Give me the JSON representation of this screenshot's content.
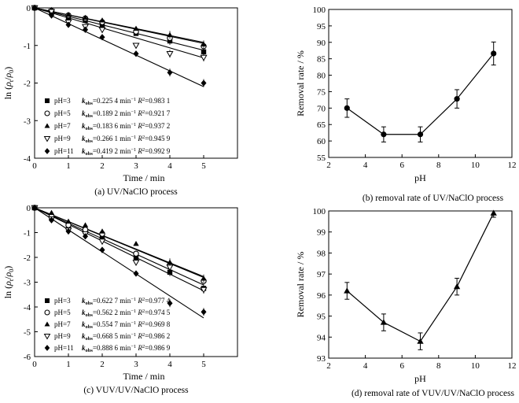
{
  "panels": {
    "a": {
      "caption": "(a) UV/NaClO process",
      "legend": [
        {
          "ph": "pH=3",
          "k": "=0.225 4 min",
          "r2": "=0.983 1"
        },
        {
          "ph": "pH=5",
          "k": "=0.189 2 min",
          "r2": "=0.921 7"
        },
        {
          "ph": "pH=7",
          "k": "=0.183 6 min",
          "r2": "=0.937 2"
        },
        {
          "ph": "pH=9",
          "k": "=0.266 1 min",
          "r2": "=0.945 9"
        },
        {
          "ph": "pH=11",
          "k": "=0.419 2 min",
          "r2": "=0.992 9"
        }
      ]
    },
    "b": {
      "caption": "(b) removal rate of UV/NaClO process"
    },
    "c": {
      "caption": "(c) VUV/UV/NaClO process",
      "legend": [
        {
          "ph": "pH=3",
          "k": "=0.622 7 min",
          "r2": "=0.977 4"
        },
        {
          "ph": "pH=5",
          "k": "=0.562 2 min",
          "r2": "=0.974 5"
        },
        {
          "ph": "pH=7",
          "k": "=0.554 7 min",
          "r2": "=0.969 8"
        },
        {
          "ph": "pH=9",
          "k": "=0.668 5 min",
          "r2": "=0.986 2"
        },
        {
          "ph": "pH=11",
          "k": "=0.888 6 min",
          "r2": "=0.986 9"
        }
      ]
    },
    "d": {
      "caption": "(d) removal rate of VUV/UV/NaClO process"
    }
  },
  "legend_tokens": {
    "k": "k",
    "obs": "obs",
    "inv": "−1",
    "R": "R",
    "two": "2"
  },
  "ylabel_ln": {
    "pre": "ln (",
    "rho": "ρ",
    "sub_t": "t",
    "slash": "/",
    "sub_0": "0",
    "post": ")"
  },
  "chart_data": [
    {
      "id": "a",
      "type": "scatter",
      "xlabel": "Time / min",
      "ylabel": "ln (ρt/ρ0)",
      "xlim": [
        0,
        6
      ],
      "ylim": [
        -4,
        0
      ],
      "xticks": [
        0,
        1,
        2,
        3,
        4,
        5
      ],
      "yticks": [
        0,
        -1,
        -2,
        -3,
        -4
      ],
      "x": [
        0,
        0.5,
        1,
        1.5,
        2,
        3,
        4,
        5
      ],
      "series": [
        {
          "name": "pH=3",
          "marker": "square",
          "k": 0.2254,
          "values": [
            0,
            -0.12,
            -0.25,
            -0.33,
            -0.45,
            -0.68,
            -0.88,
            -1.17
          ]
        },
        {
          "name": "pH=5",
          "marker": "circle-open",
          "k": 0.1892,
          "values": [
            0,
            -0.08,
            -0.2,
            -0.28,
            -0.38,
            -0.63,
            -0.8,
            -1.02
          ]
        },
        {
          "name": "pH=7",
          "marker": "triangle",
          "k": 0.1836,
          "values": [
            0,
            -0.05,
            -0.18,
            -0.26,
            -0.33,
            -0.55,
            -0.72,
            -0.97
          ]
        },
        {
          "name": "pH=9",
          "marker": "triangle-down",
          "k": 0.2661,
          "values": [
            0,
            -0.1,
            -0.38,
            -0.5,
            -0.58,
            -1.0,
            -1.22,
            -1.32
          ]
        },
        {
          "name": "pH=11",
          "marker": "diamond",
          "k": 0.4192,
          "values": [
            0,
            -0.2,
            -0.45,
            -0.58,
            -0.78,
            -1.22,
            -1.72,
            -2.0
          ]
        }
      ]
    },
    {
      "id": "b",
      "type": "line",
      "xlabel": "pH",
      "ylabel": "Removal rate / %",
      "xlim": [
        2,
        12
      ],
      "ylim": [
        55,
        100
      ],
      "xticks": [
        2,
        4,
        6,
        8,
        10,
        12
      ],
      "yticks": [
        55,
        60,
        65,
        70,
        75,
        80,
        85,
        90,
        95,
        100
      ],
      "x": [
        3,
        5,
        7,
        9,
        11
      ],
      "values": [
        70.0,
        62.0,
        62.0,
        72.8,
        86.6
      ],
      "errors": [
        2.8,
        2.3,
        2.3,
        2.8,
        3.5
      ]
    },
    {
      "id": "c",
      "type": "scatter",
      "xlabel": "Time / min",
      "ylabel": "ln (ρt/ρ0)",
      "xlim": [
        0,
        6
      ],
      "ylim": [
        -6,
        0
      ],
      "xticks": [
        0,
        1,
        2,
        3,
        4,
        5
      ],
      "yticks": [
        0,
        -1,
        -2,
        -3,
        -4,
        -5,
        -6
      ],
      "x": [
        0,
        0.5,
        1,
        1.5,
        2,
        3,
        4,
        5
      ],
      "series": [
        {
          "name": "pH=3",
          "marker": "square",
          "k": 0.6227,
          "values": [
            0,
            -0.4,
            -0.8,
            -0.95,
            -1.15,
            -2.0,
            -2.6,
            -3.25
          ]
        },
        {
          "name": "pH=5",
          "marker": "circle-open",
          "k": 0.5622,
          "values": [
            0,
            -0.35,
            -0.7,
            -0.88,
            -1.05,
            -1.85,
            -2.3,
            -2.95
          ]
        },
        {
          "name": "pH=7",
          "marker": "triangle",
          "k": 0.5547,
          "values": [
            0,
            -0.2,
            -0.55,
            -0.7,
            -0.95,
            -1.45,
            -2.2,
            -2.85
          ]
        },
        {
          "name": "pH=9",
          "marker": "triangle-down",
          "k": 0.6685,
          "values": [
            0,
            -0.45,
            -0.9,
            -1.05,
            -1.35,
            -2.2,
            -2.4,
            -3.3
          ]
        },
        {
          "name": "pH=11",
          "marker": "diamond",
          "k": 0.8886,
          "values": [
            0,
            -0.5,
            -0.95,
            -1.15,
            -1.7,
            -2.65,
            -3.85,
            -4.2
          ]
        }
      ]
    },
    {
      "id": "d",
      "type": "line",
      "xlabel": "pH",
      "ylabel": "Removal rate / %",
      "xlim": [
        2,
        12
      ],
      "ylim": [
        93,
        100
      ],
      "xticks": [
        2,
        4,
        6,
        8,
        10,
        12
      ],
      "yticks": [
        93,
        94,
        95,
        96,
        97,
        98,
        99,
        100
      ],
      "x": [
        3,
        5,
        7,
        9,
        11
      ],
      "values": [
        96.2,
        94.7,
        93.8,
        96.4,
        99.9
      ],
      "errors": [
        0.4,
        0.4,
        0.4,
        0.4,
        0.2
      ]
    }
  ]
}
